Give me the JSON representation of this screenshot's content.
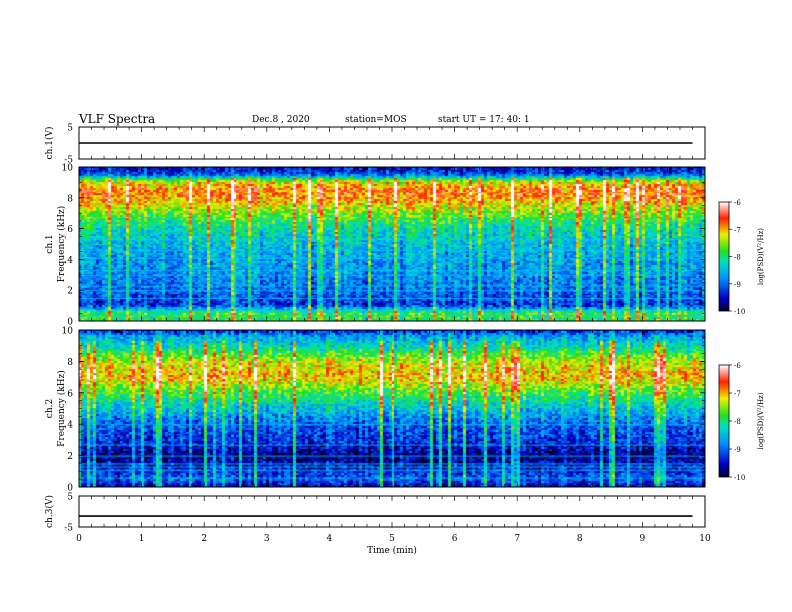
{
  "header": {
    "title": "VLF Spectra",
    "date": "Dec.8 , 2020",
    "station": "station=MOS",
    "start": "start UT = 17: 40: 1"
  },
  "chart_data": [
    {
      "type": "line",
      "panel": "ch1-voltage",
      "ylabel": "ch.1(V)",
      "ylim": [
        -5,
        5
      ],
      "yticks": [
        "5",
        "-5"
      ],
      "xlim": [
        0,
        10
      ],
      "series": [
        {
          "x": [
            0,
            9.8
          ],
          "values": [
            0,
            0
          ]
        }
      ]
    },
    {
      "type": "heatmap",
      "panel": "ch1-spectrogram",
      "ylabel": "ch.1 Frequency (kHz)",
      "ylim": [
        0,
        10
      ],
      "yticks": [
        "0",
        "2",
        "4",
        "6",
        "8",
        "10"
      ],
      "xlim": [
        0,
        10
      ],
      "colorbar": {
        "label": "log(PSD)(V²/Hz)",
        "ticks": [
          "-6",
          "-7",
          "-8",
          "-9",
          "-10"
        ],
        "range": [
          -10,
          -6
        ]
      },
      "profile": {
        "freq_khz": [
          0,
          0.5,
          1,
          2,
          3,
          4,
          5,
          6,
          7,
          8,
          8.5,
          9,
          9.5,
          10
        ],
        "log_psd": [
          -8.0,
          -7.8,
          -9.3,
          -9.0,
          -8.8,
          -8.7,
          -8.5,
          -8.2,
          -7.6,
          -6.9,
          -6.8,
          -7.3,
          -9.2,
          -9.6
        ]
      }
    },
    {
      "type": "heatmap",
      "panel": "ch2-spectrogram",
      "ylabel": "ch.2 Frequency (kHz)",
      "ylim": [
        0,
        10
      ],
      "yticks": [
        "0",
        "2",
        "4",
        "6",
        "8",
        "10"
      ],
      "xlim": [
        0,
        10
      ],
      "colorbar": {
        "label": "log(PSD)(V²/Hz)",
        "ticks": [
          "-6",
          "-7",
          "-8",
          "-9",
          "-10"
        ],
        "range": [
          -10,
          -6
        ]
      },
      "profile": {
        "freq_khz": [
          0,
          0.5,
          1,
          2,
          3,
          4,
          5,
          6,
          7,
          8,
          8.5,
          9,
          9.5,
          10
        ],
        "log_psd": [
          -9.6,
          -9.0,
          -9.3,
          -9.7,
          -9.2,
          -9.0,
          -8.4,
          -7.7,
          -7.0,
          -7.3,
          -7.8,
          -8.3,
          -8.6,
          -9.5
        ]
      }
    },
    {
      "type": "line",
      "panel": "ch3-voltage",
      "ylabel": "ch.3(V)",
      "ylim": [
        -5,
        5
      ],
      "yticks": [
        "5",
        "-5"
      ],
      "xlim": [
        0,
        10
      ],
      "xlabel": "Time (min)",
      "xticks": [
        "0",
        "1",
        "2",
        "3",
        "4",
        "5",
        "6",
        "7",
        "8",
        "9",
        "10"
      ],
      "series": [
        {
          "x": [
            0,
            9.8
          ],
          "values": [
            -1.5,
            -1.5
          ]
        }
      ]
    }
  ]
}
